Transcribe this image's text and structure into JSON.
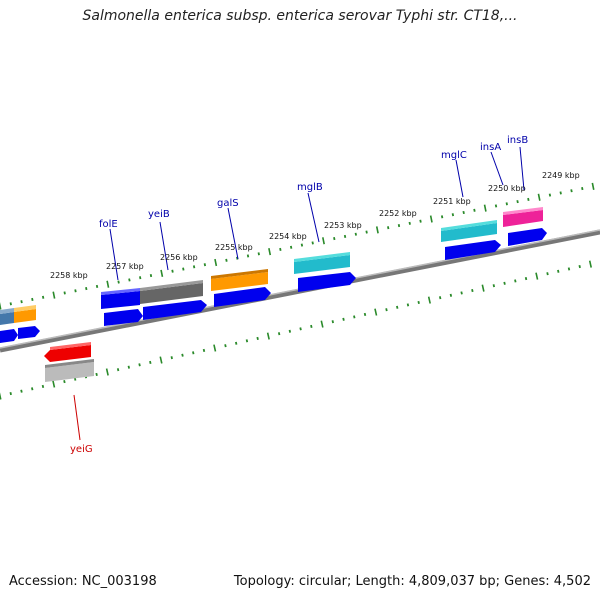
{
  "title": "Salmonella enterica subsp. enterica serovar Typhi str. CT18,...",
  "footer": {
    "accession": "Accession: NC_003198",
    "topology": "Topology: circular; Length: 4,809,037 bp; Genes: 4,502"
  },
  "scale_labels": [
    "2249 kbp",
    "2250 kbp",
    "2251 kbp",
    "2252 kbp",
    "2253 kbp",
    "2254 kbp",
    "2255 kbp",
    "2256 kbp",
    "2257 kbp",
    "2258 kbp"
  ],
  "gene_labels": [
    "insB",
    "insA",
    "mglC",
    "mglB",
    "galS",
    "yeiB",
    "folE",
    "yeiG"
  ],
  "colors": {
    "backbone": "#888888",
    "tick": "#2a8a2a",
    "label_blue": "#0000aa",
    "label_red": "#cc0000",
    "cds_blue": "#0000ee",
    "cyan": "#22bbcc",
    "orange": "#ff9900",
    "magenta": "#ee2299",
    "gray": "#666666",
    "red": "#ee0000",
    "light_gray": "#bbbbbb",
    "steel": "#4477aa"
  }
}
